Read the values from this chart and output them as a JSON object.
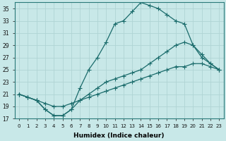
{
  "xlabel": "Humidex (Indice chaleur)",
  "bg_color": "#c8e8e8",
  "grid_color": "#b0d4d4",
  "line_color": "#1a6b6b",
  "xlim": [
    -0.5,
    23.5
  ],
  "ylim": [
    17,
    36
  ],
  "yticks": [
    17,
    19,
    21,
    23,
    25,
    27,
    29,
    31,
    33,
    35
  ],
  "xtick_labels": [
    "0",
    "1",
    "2",
    "3",
    "4",
    "5",
    "6",
    "7",
    "8",
    "9",
    "10",
    "11",
    "12",
    "13",
    "14",
    "15",
    "16",
    "17",
    "18",
    "19",
    "20",
    "21",
    "22",
    "23"
  ],
  "curve1_x": [
    0,
    1,
    2,
    3,
    4,
    5,
    6,
    7,
    8,
    9,
    10,
    11,
    12,
    13,
    14,
    15,
    16,
    17,
    18,
    19,
    20,
    21,
    22,
    23
  ],
  "curve1_y": [
    21,
    20.5,
    20,
    18.5,
    17.5,
    17.5,
    18.5,
    22,
    25,
    27,
    29.5,
    32.5,
    33,
    34.5,
    36,
    35.5,
    35,
    34,
    33,
    32.5,
    29,
    27,
    26,
    25
  ],
  "curve2_x": [
    0,
    1,
    2,
    3,
    4,
    5,
    6,
    7,
    8,
    9,
    10,
    11,
    12,
    13,
    14,
    15,
    16,
    17,
    18,
    19,
    20,
    21,
    22,
    23
  ],
  "curve2_y": [
    21,
    20.5,
    20,
    18.5,
    17.5,
    17.5,
    18.5,
    20,
    21,
    22,
    23,
    23.5,
    24,
    24.5,
    25,
    26,
    27,
    28,
    29,
    29.5,
    29,
    27.5,
    26,
    25
  ],
  "curve3_x": [
    0,
    1,
    2,
    3,
    4,
    5,
    6,
    7,
    8,
    9,
    10,
    11,
    12,
    13,
    14,
    15,
    16,
    17,
    18,
    19,
    20,
    21,
    22,
    23
  ],
  "curve3_y": [
    21,
    20.5,
    20,
    19.5,
    19,
    19,
    19.5,
    20,
    20.5,
    21,
    21.5,
    22,
    22.5,
    23,
    23.5,
    24,
    24.5,
    25,
    25.5,
    25.5,
    26,
    26,
    25.5,
    25
  ]
}
